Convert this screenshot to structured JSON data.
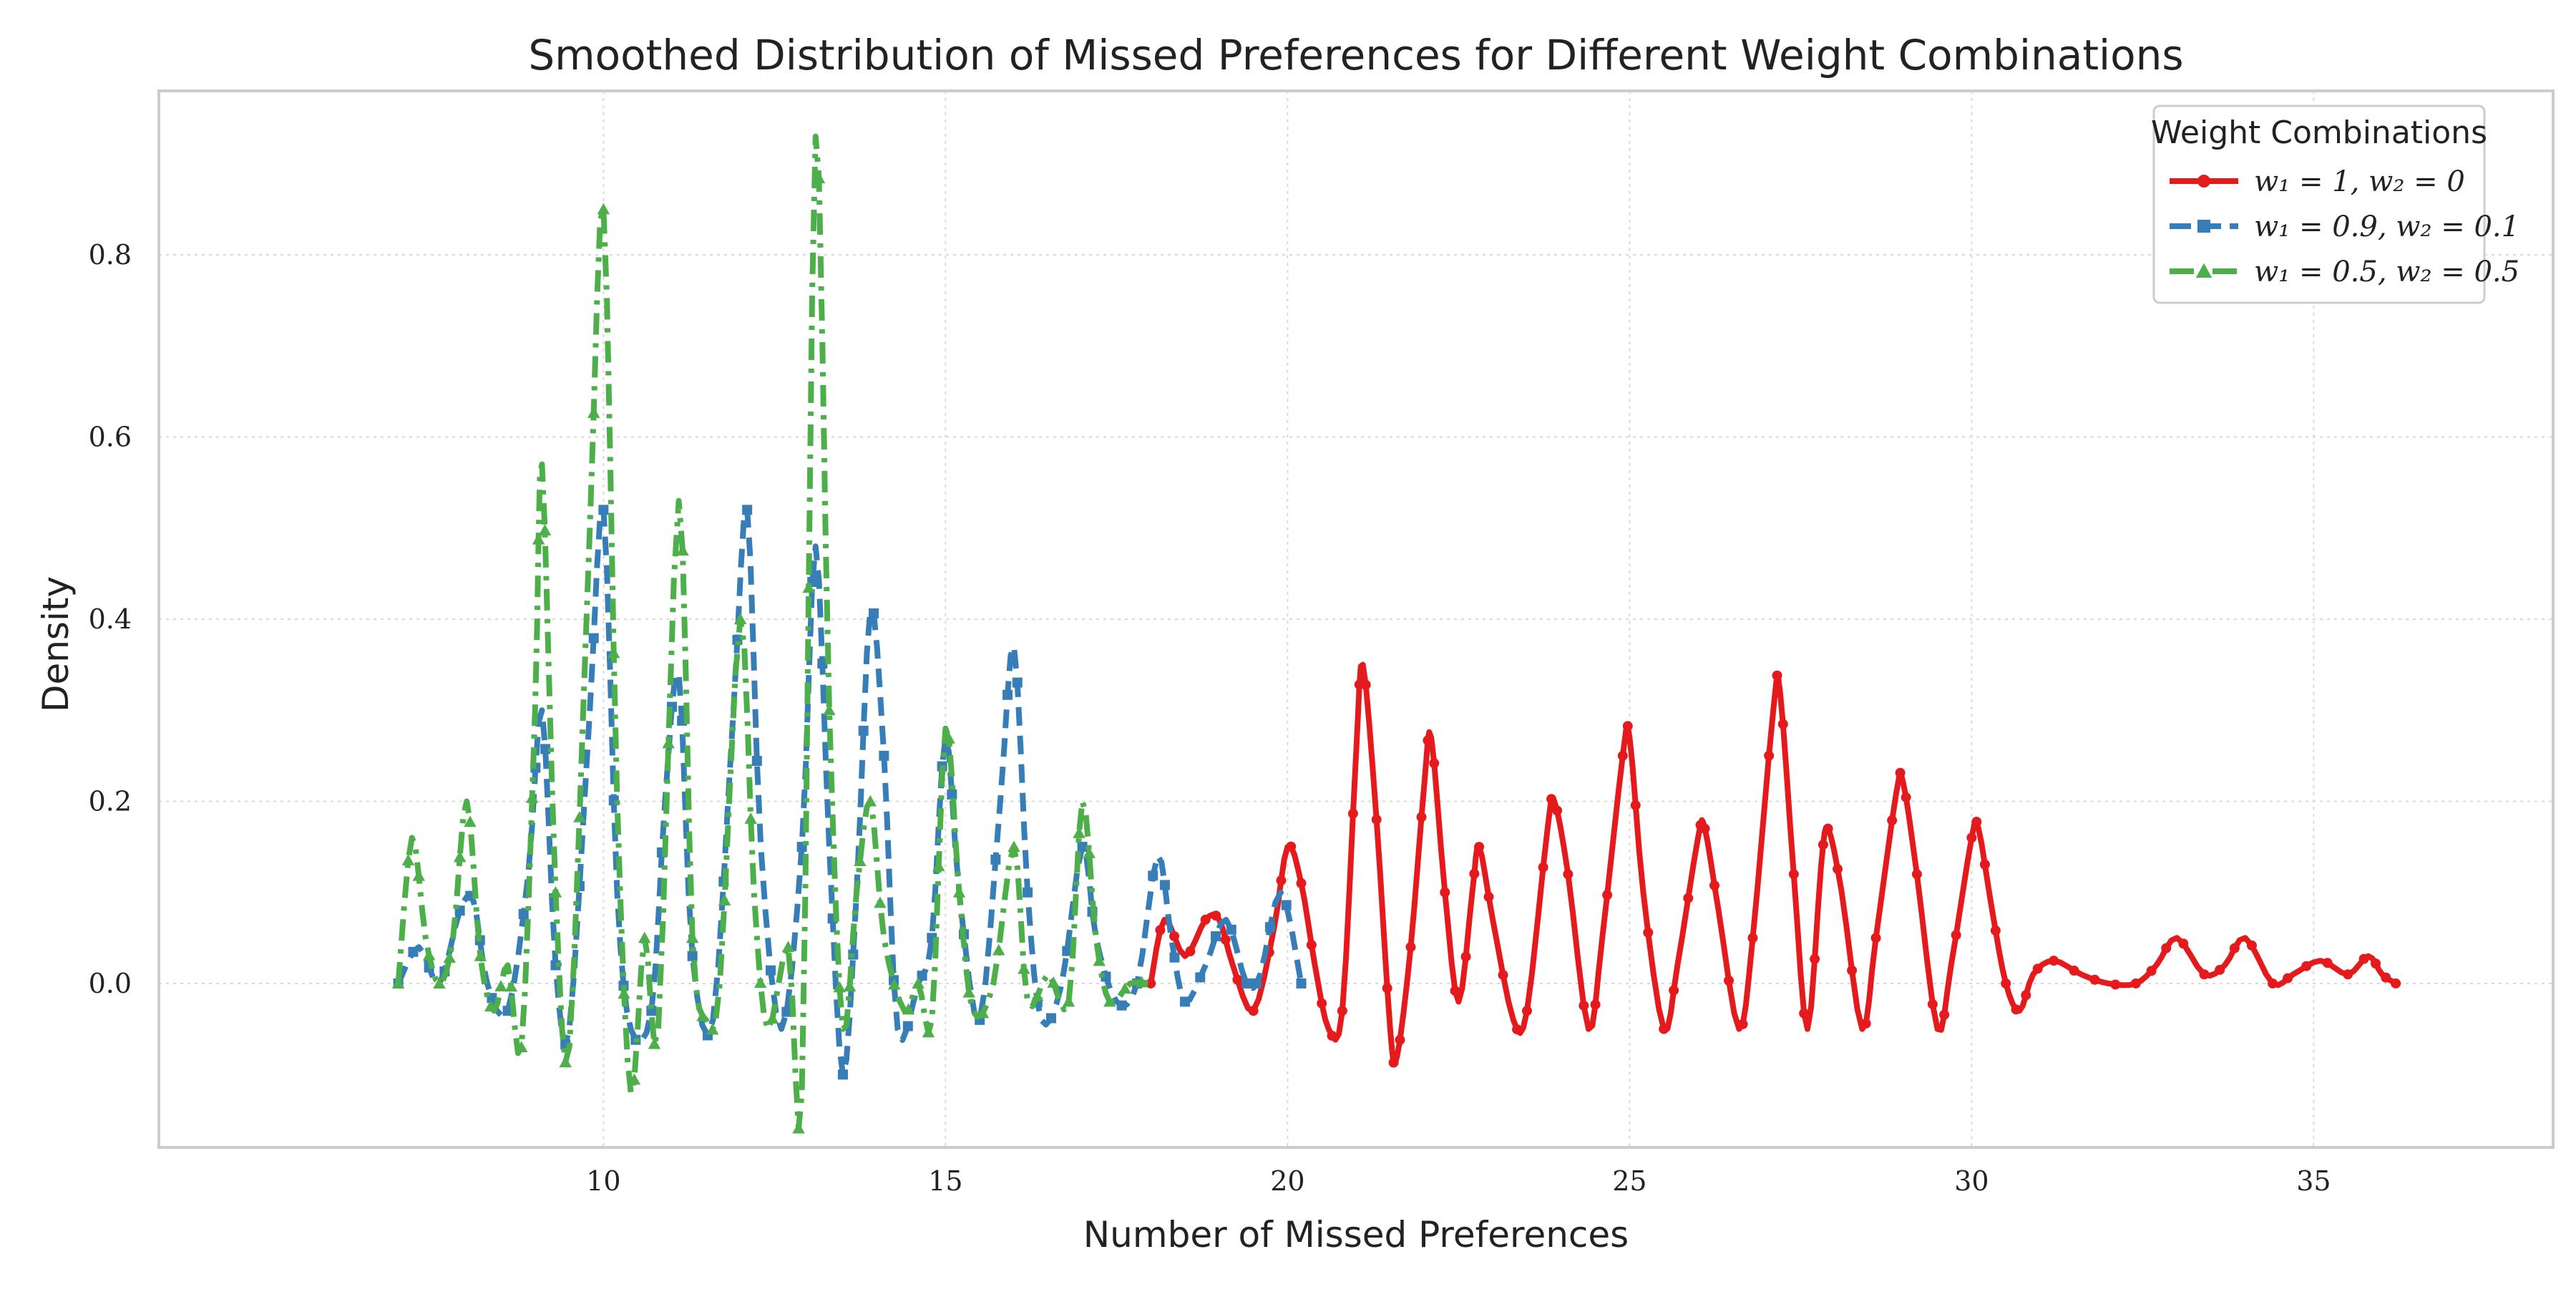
{
  "chart_data": {
    "type": "line",
    "title": "Smoothed Distribution of Missed Preferences for Different Weight Combinations",
    "xlabel": "Number of Missed Preferences",
    "ylabel": "Density",
    "xlim": [
      3.5,
      38.5
    ],
    "ylim": [
      -0.18,
      0.98
    ],
    "xticks": [
      10,
      15,
      20,
      25,
      30,
      35
    ],
    "yticks": [
      0.0,
      0.2,
      0.4,
      0.6,
      0.8
    ],
    "ytick_labels": [
      "0.0",
      "0.2",
      "0.4",
      "0.6",
      "0.8"
    ],
    "grid": true,
    "legend": {
      "title": "Weight Combinations",
      "placement": "top-right"
    },
    "series": [
      {
        "name": "w₁ = 1, w₂ = 0",
        "color": "#e41a1c",
        "marker": "circle",
        "linestyle": "solid",
        "points": [
          [
            18.0,
            0.0
          ],
          [
            18.2,
            0.07
          ],
          [
            18.5,
            0.03
          ],
          [
            18.8,
            0.07
          ],
          [
            19.0,
            0.07
          ],
          [
            19.2,
            0.02
          ],
          [
            19.5,
            -0.03
          ],
          [
            19.8,
            0.06
          ],
          [
            20.0,
            0.15
          ],
          [
            20.2,
            0.11
          ],
          [
            20.4,
            0.02
          ],
          [
            20.6,
            -0.05
          ],
          [
            20.8,
            -0.03
          ],
          [
            21.0,
            0.25
          ],
          [
            21.1,
            0.35
          ],
          [
            21.3,
            0.18
          ],
          [
            21.5,
            -0.05
          ],
          [
            21.6,
            -0.08
          ],
          [
            21.8,
            0.04
          ],
          [
            22.0,
            0.22
          ],
          [
            22.1,
            0.27
          ],
          [
            22.3,
            0.1
          ],
          [
            22.5,
            -0.02
          ],
          [
            22.7,
            0.1
          ],
          [
            22.8,
            0.15
          ],
          [
            23.0,
            0.07
          ],
          [
            23.3,
            -0.04
          ],
          [
            23.5,
            -0.03
          ],
          [
            23.8,
            0.17
          ],
          [
            23.9,
            0.2
          ],
          [
            24.1,
            0.12
          ],
          [
            24.4,
            -0.05
          ],
          [
            24.6,
            0.05
          ],
          [
            24.9,
            0.25
          ],
          [
            25.0,
            0.27
          ],
          [
            25.2,
            0.1
          ],
          [
            25.5,
            -0.05
          ],
          [
            25.7,
            0.02
          ],
          [
            26.0,
            0.16
          ],
          [
            26.1,
            0.17
          ],
          [
            26.3,
            0.08
          ],
          [
            26.6,
            -0.05
          ],
          [
            26.8,
            0.05
          ],
          [
            27.1,
            0.3
          ],
          [
            27.2,
            0.32
          ],
          [
            27.4,
            0.12
          ],
          [
            27.6,
            -0.05
          ],
          [
            27.8,
            0.13
          ],
          [
            27.9,
            0.17
          ],
          [
            28.1,
            0.1
          ],
          [
            28.4,
            -0.05
          ],
          [
            28.6,
            0.05
          ],
          [
            28.9,
            0.21
          ],
          [
            29.0,
            0.22
          ],
          [
            29.2,
            0.12
          ],
          [
            29.5,
            -0.05
          ],
          [
            29.7,
            0.02
          ],
          [
            30.0,
            0.16
          ],
          [
            30.1,
            0.17
          ],
          [
            30.3,
            0.08
          ],
          [
            30.5,
            0.0
          ],
          [
            30.7,
            -0.03
          ],
          [
            30.9,
            0.01
          ],
          [
            31.2,
            0.025
          ],
          [
            31.6,
            0.01
          ],
          [
            32.0,
            0.0
          ],
          [
            32.4,
            0.0
          ],
          [
            32.7,
            0.02
          ],
          [
            33.0,
            0.05
          ],
          [
            33.4,
            0.01
          ],
          [
            33.7,
            0.02
          ],
          [
            34.0,
            0.05
          ],
          [
            34.4,
            0.0
          ],
          [
            34.7,
            0.01
          ],
          [
            35.1,
            0.025
          ],
          [
            35.5,
            0.01
          ],
          [
            35.8,
            0.03
          ],
          [
            36.0,
            0.01
          ],
          [
            36.2,
            0.0
          ]
        ]
      },
      {
        "name": "w₁ = 0.9, w₂ = 0.1",
        "color": "#377eb8",
        "marker": "square",
        "linestyle": "dashed",
        "points": [
          [
            7.0,
            0.0
          ],
          [
            7.3,
            0.04
          ],
          [
            7.6,
            0.0
          ],
          [
            7.9,
            0.08
          ],
          [
            8.1,
            0.09
          ],
          [
            8.3,
            0.0
          ],
          [
            8.6,
            -0.03
          ],
          [
            8.9,
            0.12
          ],
          [
            9.1,
            0.3
          ],
          [
            9.3,
            0.02
          ],
          [
            9.5,
            -0.05
          ],
          [
            9.8,
            0.3
          ],
          [
            10.0,
            0.52
          ],
          [
            10.2,
            0.1
          ],
          [
            10.4,
            -0.05
          ],
          [
            10.7,
            -0.03
          ],
          [
            10.9,
            0.2
          ],
          [
            11.1,
            0.34
          ],
          [
            11.3,
            0.03
          ],
          [
            11.6,
            -0.04
          ],
          [
            11.9,
            0.3
          ],
          [
            12.1,
            0.52
          ],
          [
            12.3,
            0.15
          ],
          [
            12.6,
            -0.05
          ],
          [
            12.9,
            0.15
          ],
          [
            13.1,
            0.48
          ],
          [
            13.3,
            0.15
          ],
          [
            13.5,
            -0.1
          ],
          [
            13.7,
            0.1
          ],
          [
            13.9,
            0.41
          ],
          [
            14.1,
            0.25
          ],
          [
            14.3,
            -0.05
          ],
          [
            14.6,
            0.0
          ],
          [
            14.8,
            0.05
          ],
          [
            15.0,
            0.27
          ],
          [
            15.2,
            0.1
          ],
          [
            15.5,
            -0.04
          ],
          [
            15.8,
            0.2
          ],
          [
            16.0,
            0.37
          ],
          [
            16.2,
            0.1
          ],
          [
            16.4,
            -0.04
          ],
          [
            16.7,
            0.0
          ],
          [
            17.0,
            0.15
          ],
          [
            17.2,
            0.05
          ],
          [
            17.5,
            -0.02
          ],
          [
            17.8,
            0.0
          ],
          [
            18.1,
            0.14
          ],
          [
            18.3,
            0.05
          ],
          [
            18.5,
            -0.02
          ],
          [
            18.8,
            0.02
          ],
          [
            19.1,
            0.07
          ],
          [
            19.4,
            0.0
          ],
          [
            19.6,
            0.01
          ],
          [
            19.9,
            0.1
          ],
          [
            20.2,
            0.0
          ]
        ]
      },
      {
        "name": "w₁ = 0.5, w₂ = 0.5",
        "color": "#4daf4a",
        "marker": "triangle",
        "linestyle": "dashdot",
        "points": [
          [
            7.0,
            0.0
          ],
          [
            7.2,
            0.16
          ],
          [
            7.4,
            0.05
          ],
          [
            7.6,
            0.0
          ],
          [
            7.8,
            0.05
          ],
          [
            8.0,
            0.2
          ],
          [
            8.2,
            0.03
          ],
          [
            8.4,
            -0.03
          ],
          [
            8.6,
            0.02
          ],
          [
            8.8,
            -0.07
          ],
          [
            9.0,
            0.3
          ],
          [
            9.1,
            0.57
          ],
          [
            9.3,
            0.1
          ],
          [
            9.5,
            -0.07
          ],
          [
            9.8,
            0.5
          ],
          [
            10.0,
            0.85
          ],
          [
            10.2,
            0.2
          ],
          [
            10.4,
            -0.12
          ],
          [
            10.6,
            0.05
          ],
          [
            10.8,
            -0.05
          ],
          [
            11.1,
            0.53
          ],
          [
            11.3,
            0.05
          ],
          [
            11.5,
            -0.04
          ],
          [
            11.7,
            0.0
          ],
          [
            12.0,
            0.4
          ],
          [
            12.2,
            0.1
          ],
          [
            12.4,
            -0.05
          ],
          [
            12.7,
            0.04
          ],
          [
            12.9,
            -0.12
          ],
          [
            13.1,
            0.93
          ],
          [
            13.3,
            0.3
          ],
          [
            13.5,
            -0.05
          ],
          [
            13.7,
            0.1
          ],
          [
            13.9,
            0.2
          ],
          [
            14.1,
            0.05
          ],
          [
            14.4,
            -0.03
          ],
          [
            14.6,
            0.0
          ],
          [
            14.8,
            -0.04
          ],
          [
            15.0,
            0.28
          ],
          [
            15.2,
            0.1
          ],
          [
            15.4,
            -0.03
          ],
          [
            15.7,
            0.0
          ],
          [
            16.0,
            0.15
          ],
          [
            16.2,
            -0.02
          ],
          [
            16.5,
            0.01
          ],
          [
            16.8,
            -0.02
          ],
          [
            17.0,
            0.2
          ],
          [
            17.2,
            0.05
          ],
          [
            17.4,
            -0.02
          ],
          [
            17.7,
            0.0
          ],
          [
            18.0,
            0.0
          ]
        ]
      }
    ]
  }
}
